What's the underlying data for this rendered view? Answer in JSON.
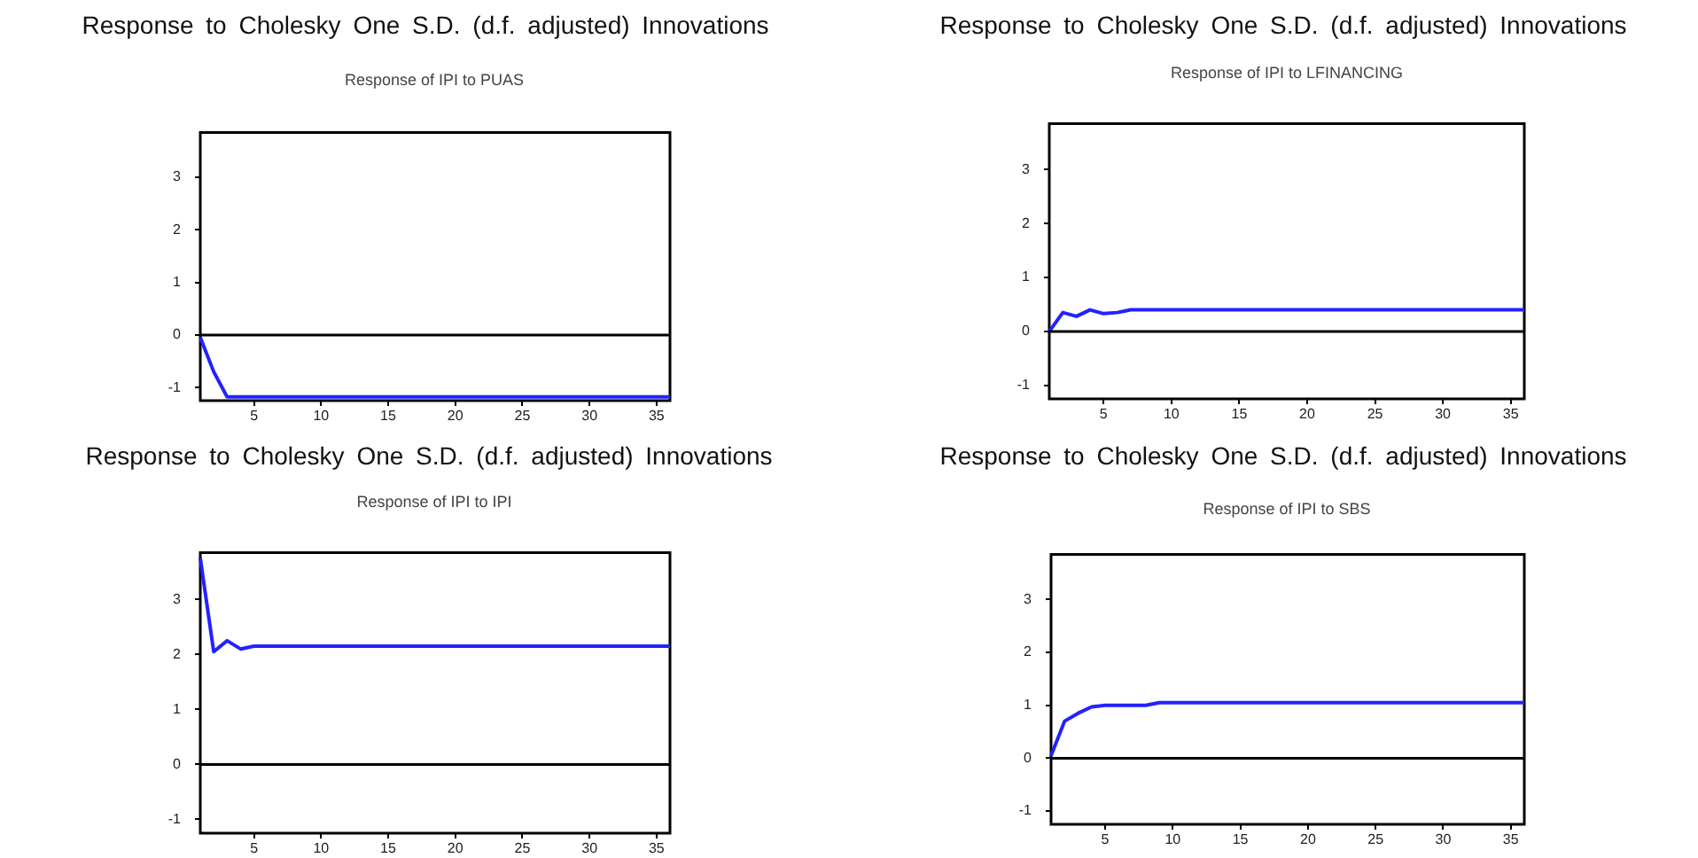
{
  "chart_data": [
    {
      "type": "line",
      "title": "Response to Cholesky One S.D. (d.f. adjusted) Innovations",
      "subtitle": "Response of IPI to PUAS",
      "x": [
        1,
        2,
        3,
        4,
        36
      ],
      "series": [
        {
          "color": "#2222ff",
          "values": [
            -0.05,
            -0.7,
            -1.18,
            -1.18,
            -1.18
          ]
        }
      ],
      "xlim": [
        1,
        36
      ],
      "ylim": [
        -1.25,
        3.85
      ],
      "xticks": [
        5,
        10,
        15,
        20,
        25,
        30,
        35
      ],
      "yticks": [
        -1,
        0,
        1,
        2,
        3
      ],
      "marker": "none",
      "ref_lines": [
        {
          "axis": "y",
          "value": 0
        }
      ]
    },
    {
      "type": "line",
      "title": "Response to Cholesky One S.D. (d.f. adjusted) Innovations",
      "subtitle": "Response of IPI to LFINANCING",
      "x": [
        1,
        2,
        3,
        4,
        5,
        6,
        7,
        36
      ],
      "series": [
        {
          "color": "#2222ff",
          "values": [
            0.0,
            0.35,
            0.28,
            0.4,
            0.33,
            0.35,
            0.4,
            0.4
          ]
        }
      ],
      "xlim": [
        1,
        36
      ],
      "ylim": [
        -1.25,
        3.85
      ],
      "xticks": [
        5,
        10,
        15,
        20,
        25,
        30,
        35
      ],
      "yticks": [
        -1,
        0,
        1,
        2,
        3
      ],
      "marker": "none",
      "ref_lines": [
        {
          "axis": "y",
          "value": 0
        }
      ]
    },
    {
      "type": "line",
      "title": "Response to Cholesky One S.D. (d.f. adjusted) Innovations",
      "subtitle": "Response of IPI to IPI",
      "x": [
        1,
        2,
        3,
        4,
        5,
        36
      ],
      "series": [
        {
          "color": "#2222ff",
          "values": [
            3.75,
            2.05,
            2.25,
            2.1,
            2.15,
            2.15
          ]
        }
      ],
      "xlim": [
        1,
        36
      ],
      "ylim": [
        -1.25,
        3.85
      ],
      "xticks": [
        5,
        10,
        15,
        20,
        25,
        30,
        35
      ],
      "yticks": [
        -1,
        0,
        1,
        2,
        3
      ],
      "marker": "none",
      "ref_lines": [
        {
          "axis": "y",
          "value": 0
        }
      ]
    },
    {
      "type": "line",
      "title": "Response to Cholesky One S.D. (d.f. adjusted) Innovations",
      "subtitle": "Response of IPI to SBS",
      "x": [
        1,
        2,
        3,
        4,
        5,
        8,
        9,
        36
      ],
      "series": [
        {
          "color": "#2222ff",
          "values": [
            0.05,
            0.7,
            0.85,
            0.97,
            1.0,
            1.0,
            1.05,
            1.05
          ]
        }
      ],
      "xlim": [
        1,
        36
      ],
      "ylim": [
        -1.25,
        3.85
      ],
      "xticks": [
        5,
        10,
        15,
        20,
        25,
        30,
        35
      ],
      "yticks": [
        -1,
        0,
        1,
        2,
        3
      ],
      "marker": "none",
      "ref_lines": [
        {
          "axis": "y",
          "value": 0
        }
      ]
    }
  ]
}
